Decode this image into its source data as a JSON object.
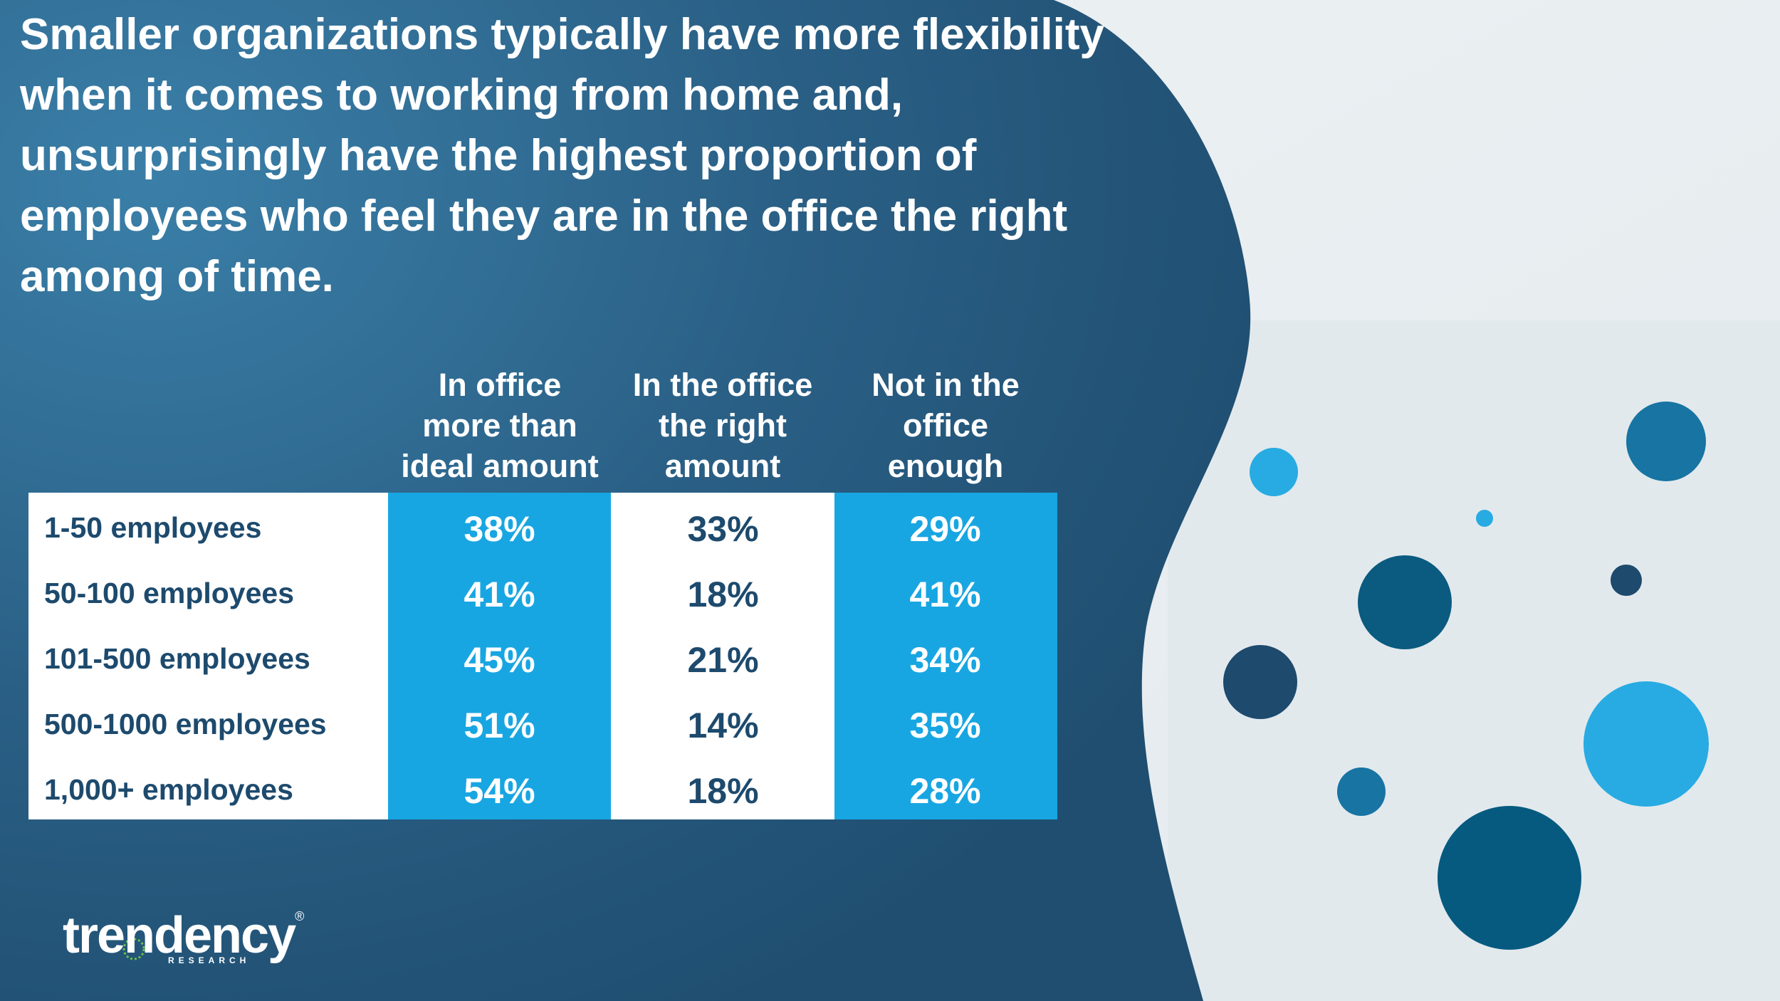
{
  "headline": "Smaller organizations typically have more flexibility when it comes to working from home and, unsurprisingly have the highest proportion of employees who feel they are in the office the right among of time.",
  "colors": {
    "panel_dark": "#1f4e70",
    "panel_light": "#3a7fa8",
    "table_white": "#ffffff",
    "table_blue": "#18a6e2",
    "label_text": "#1d4a6d",
    "page_bg": "#e6edf1"
  },
  "chart_data": {
    "type": "table",
    "title": "Smaller organizations typically have more flexibility when it comes to working from home and, unsurprisingly have the highest proportion of employees who feel they are in the office the right among of time.",
    "columns": [
      [
        "In office",
        "more than",
        "ideal amount"
      ],
      [
        "In the office",
        "the right",
        "amount"
      ],
      [
        "Not in the",
        "office",
        "enough"
      ]
    ],
    "rows": [
      {
        "label": "1-50 employees",
        "values": [
          "38%",
          "33%",
          "29%"
        ]
      },
      {
        "label": "50-100 employees",
        "values": [
          "41%",
          "18%",
          "41%"
        ]
      },
      {
        "label": "101-500 employees",
        "values": [
          "45%",
          "21%",
          "34%"
        ]
      },
      {
        "label": "500-1000 employees",
        "values": [
          "51%",
          "14%",
          "35%"
        ]
      },
      {
        "label": "1,000+ employees",
        "values": [
          "54%",
          "18%",
          "28%"
        ]
      }
    ]
  },
  "logo": {
    "name": "trendency",
    "tagline": "RESEARCH",
    "icon": "trendency-logo-icon"
  }
}
